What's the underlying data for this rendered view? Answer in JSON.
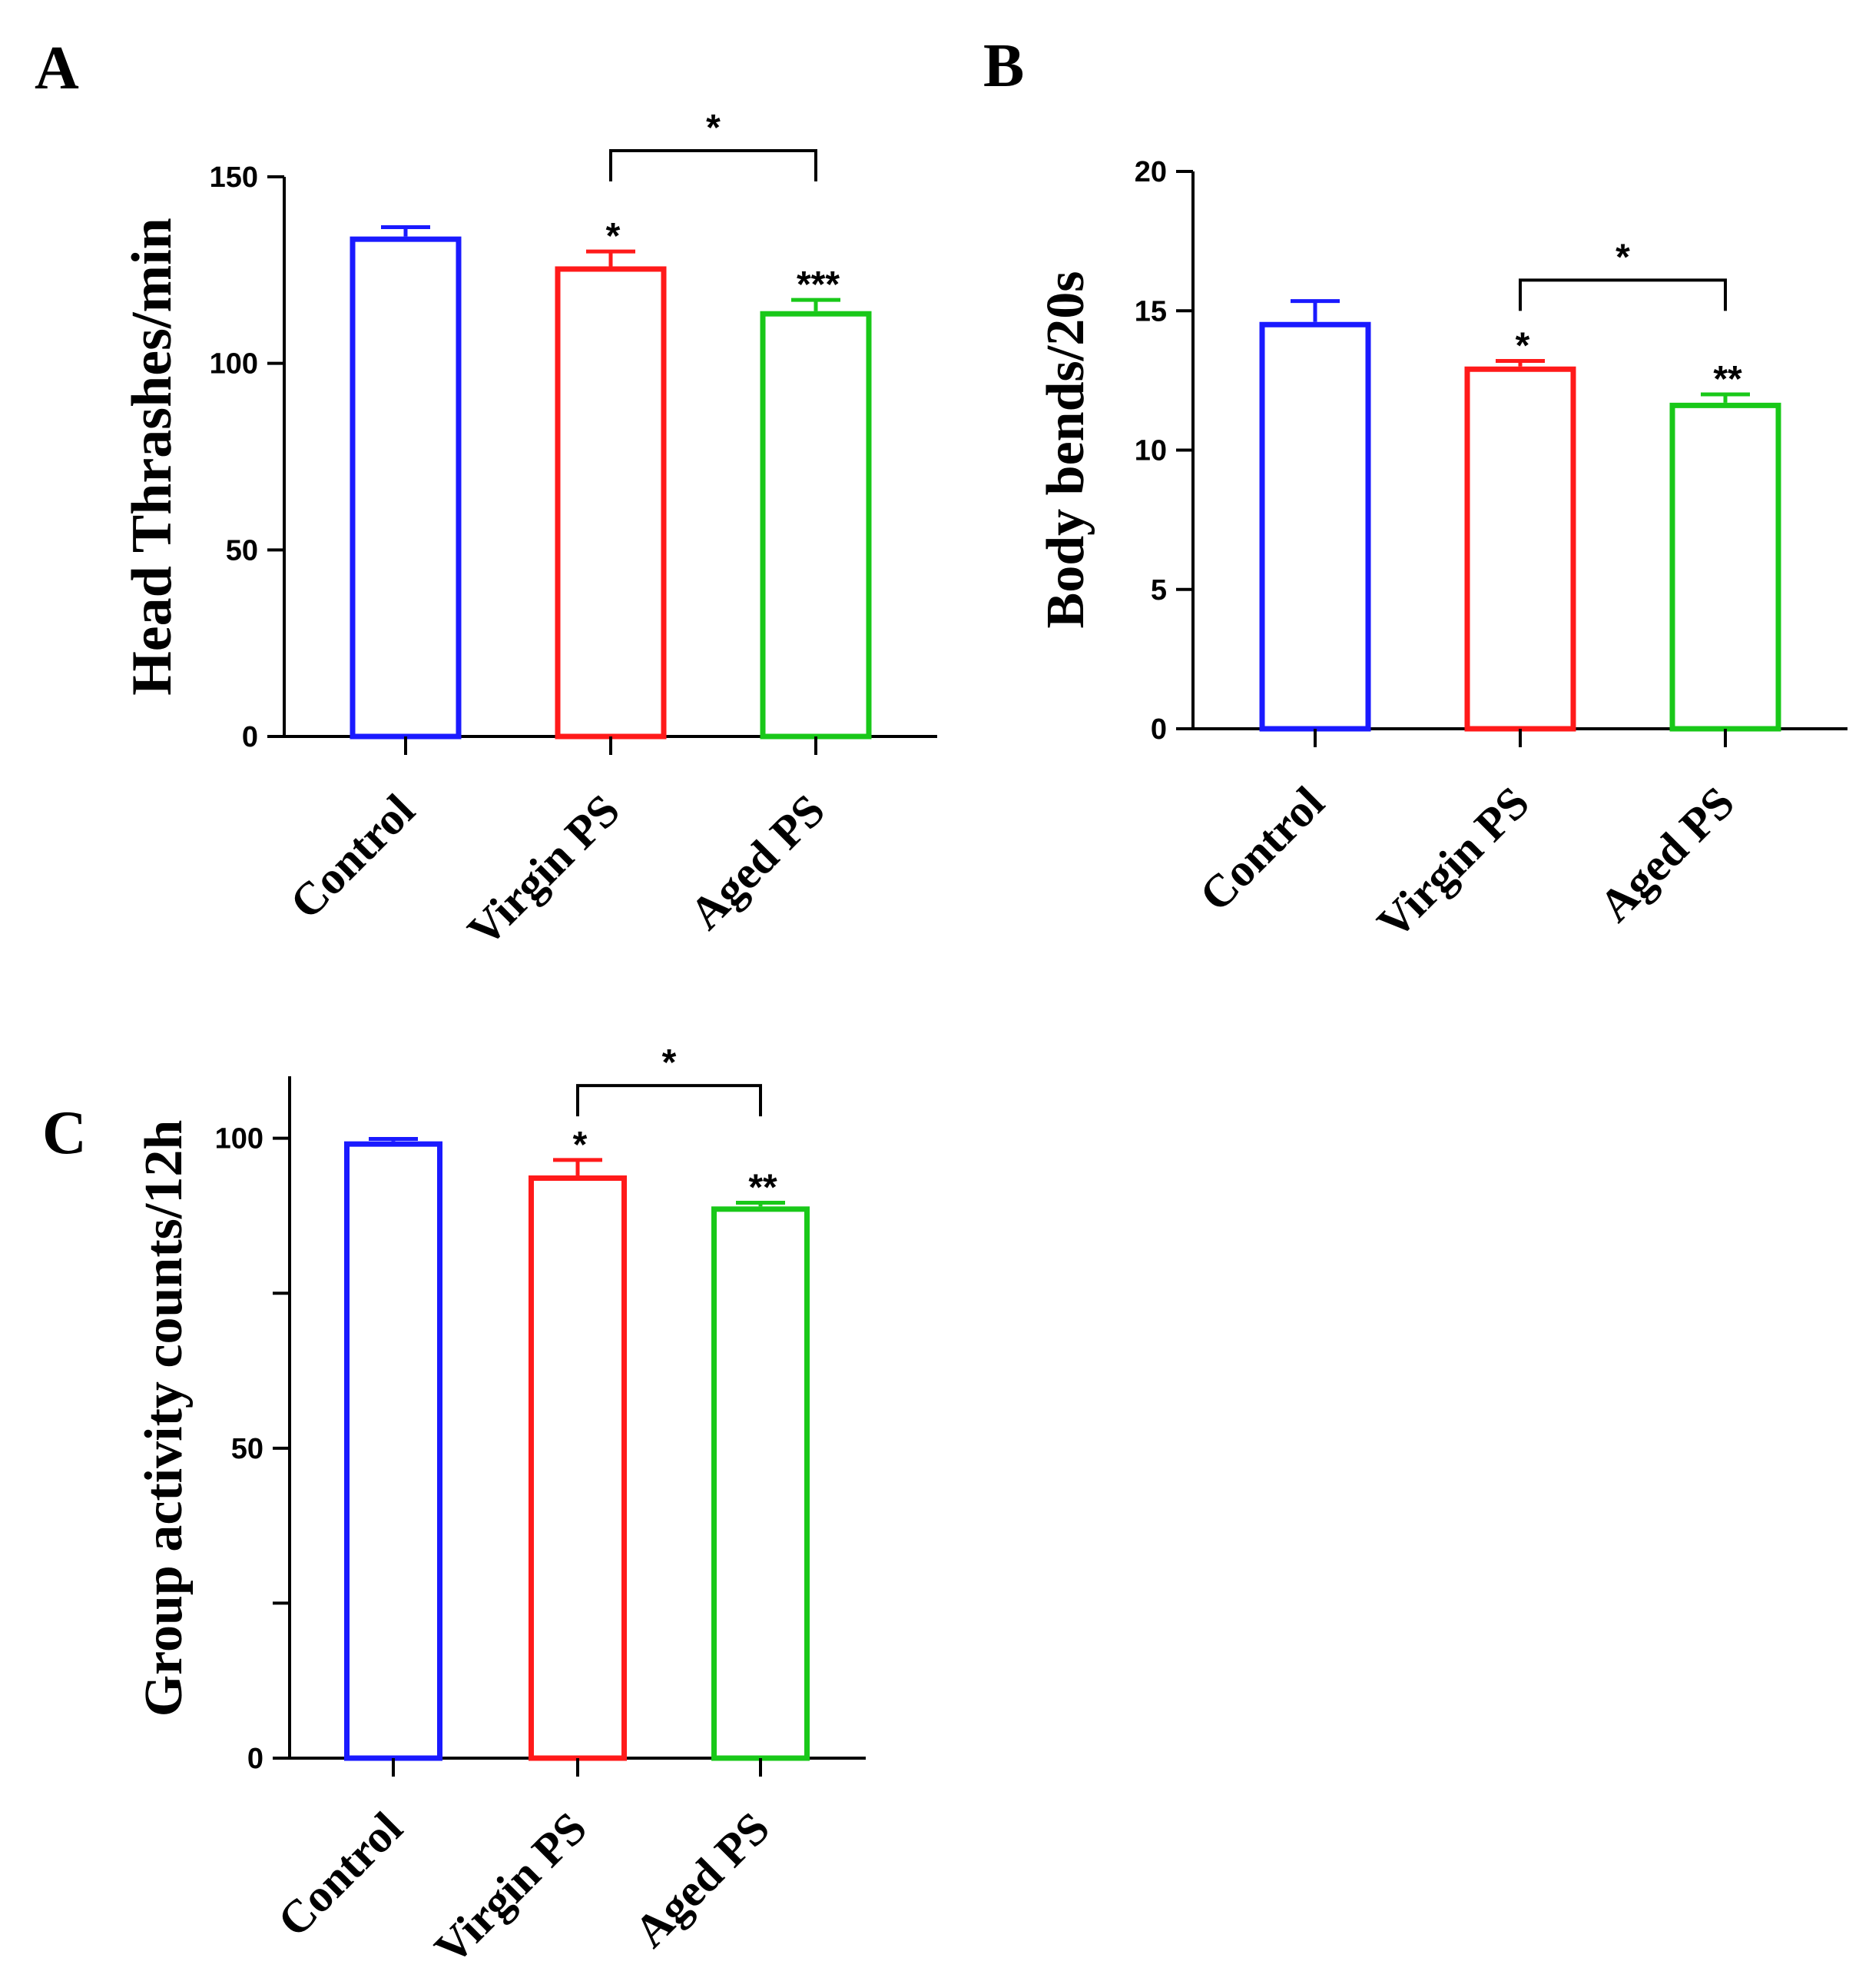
{
  "chart_data": [
    {
      "panel": "A",
      "type": "bar",
      "ylabel": "Head Thrashes/min",
      "categories": [
        "Control",
        "Virgin PS",
        "Aged PS"
      ],
      "values": [
        134,
        126,
        114
      ],
      "errors": [
        2.5,
        4,
        3
      ],
      "colors": [
        "#1a1aff",
        "#ff1a1a",
        "#19c819"
      ],
      "ylim": [
        0,
        150
      ],
      "yticks": [
        0,
        50,
        100,
        150
      ],
      "ytick_labels": [
        "0",
        "50",
        "100",
        "150"
      ],
      "bar_labels": [
        "",
        "*",
        "***"
      ],
      "bracket": {
        "from": 1,
        "to": 2,
        "label": "*",
        "value": 157
      }
    },
    {
      "panel": "B",
      "type": "bar",
      "ylabel": "Body bends/20s",
      "categories": [
        "Control",
        "Virgin PS",
        "Aged PS"
      ],
      "values": [
        14.6,
        13.0,
        11.7
      ],
      "errors": [
        0.75,
        0.2,
        0.3
      ],
      "colors": [
        "#1a1aff",
        "#ff1a1a",
        "#19c819"
      ],
      "ylim": [
        0,
        20
      ],
      "yticks": [
        0,
        5,
        10,
        15,
        20
      ],
      "ytick_labels": [
        "0",
        "5",
        "10",
        "15",
        "20"
      ],
      "bar_labels": [
        "",
        "*",
        "**"
      ],
      "bracket": {
        "from": 1,
        "to": 2,
        "label": "*",
        "value": 16.1
      }
    },
    {
      "panel": "C",
      "type": "bar",
      "ylabel": "Group activity counts/12h",
      "categories": [
        "Control",
        "Virgin PS",
        "Aged PS"
      ],
      "values": [
        99.5,
        94,
        89
      ],
      "errors": [
        0.4,
        2.5,
        0.6
      ],
      "colors": [
        "#1a1aff",
        "#ff1a1a",
        "#19c819"
      ],
      "ylim": [
        0,
        110
      ],
      "yticks": [
        0,
        25,
        50,
        75,
        100
      ],
      "ytick_labels": [
        "0",
        "",
        "50",
        "",
        "100"
      ],
      "bar_labels": [
        "",
        "*",
        "**"
      ],
      "bracket": {
        "from": 1,
        "to": 2,
        "label": "*",
        "value": 108.5
      }
    }
  ]
}
